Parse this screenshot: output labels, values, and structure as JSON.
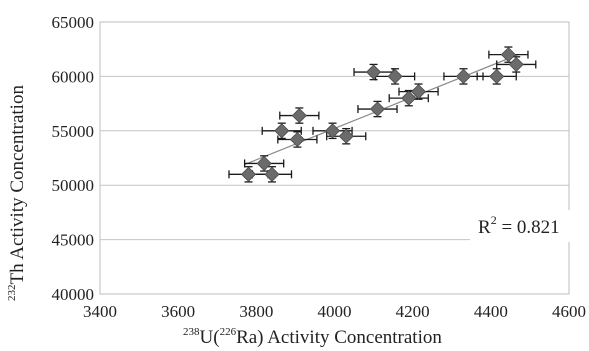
{
  "chart_data": {
    "type": "scatter",
    "title": "",
    "xlabel": {
      "sup1": "238",
      "main1": "U(",
      "sup2": "226",
      "main2": "Ra) Activity Concentration"
    },
    "ylabel": {
      "sup": "232",
      "main": "Th Activity Concentration"
    },
    "xlim": [
      3400,
      4600
    ],
    "ylim": [
      40000,
      65000
    ],
    "xticks": [
      "3400",
      "3600",
      "3800",
      "4000",
      "4200",
      "4400",
      "4600"
    ],
    "yticks": [
      "40000",
      "45000",
      "50000",
      "55000",
      "60000",
      "65000"
    ],
    "grid": "horizontal",
    "marker": "diamond",
    "marker_color": "#6b6b6b",
    "line_color": "#888888",
    "points": [
      {
        "x": 3780,
        "y": 51000,
        "xerr": 50,
        "yerr": 700
      },
      {
        "x": 3820,
        "y": 52000,
        "xerr": 50,
        "yerr": 700
      },
      {
        "x": 3840,
        "y": 51000,
        "xerr": 50,
        "yerr": 700
      },
      {
        "x": 3865,
        "y": 55000,
        "xerr": 50,
        "yerr": 700
      },
      {
        "x": 3905,
        "y": 54200,
        "xerr": 50,
        "yerr": 700
      },
      {
        "x": 3910,
        "y": 56400,
        "xerr": 50,
        "yerr": 700
      },
      {
        "x": 3995,
        "y": 55000,
        "xerr": 50,
        "yerr": 700
      },
      {
        "x": 4030,
        "y": 54500,
        "xerr": 50,
        "yerr": 700
      },
      {
        "x": 4100,
        "y": 60400,
        "xerr": 50,
        "yerr": 700
      },
      {
        "x": 4110,
        "y": 57000,
        "xerr": 50,
        "yerr": 700
      },
      {
        "x": 4155,
        "y": 60000,
        "xerr": 50,
        "yerr": 700
      },
      {
        "x": 4190,
        "y": 58000,
        "xerr": 50,
        "yerr": 700
      },
      {
        "x": 4215,
        "y": 58600,
        "xerr": 50,
        "yerr": 700
      },
      {
        "x": 4330,
        "y": 60000,
        "xerr": 50,
        "yerr": 700
      },
      {
        "x": 4415,
        "y": 60000,
        "xerr": 50,
        "yerr": 700
      },
      {
        "x": 4445,
        "y": 62000,
        "xerr": 50,
        "yerr": 700
      },
      {
        "x": 4465,
        "y": 61100,
        "xerr": 50,
        "yerr": 700
      }
    ],
    "trendline": {
      "x": [
        3770,
        4470
      ],
      "y": [
        51900,
        62000
      ]
    },
    "annotation": {
      "r_label": "R",
      "r_sup": "2",
      "r_value": " = 0.821"
    }
  }
}
